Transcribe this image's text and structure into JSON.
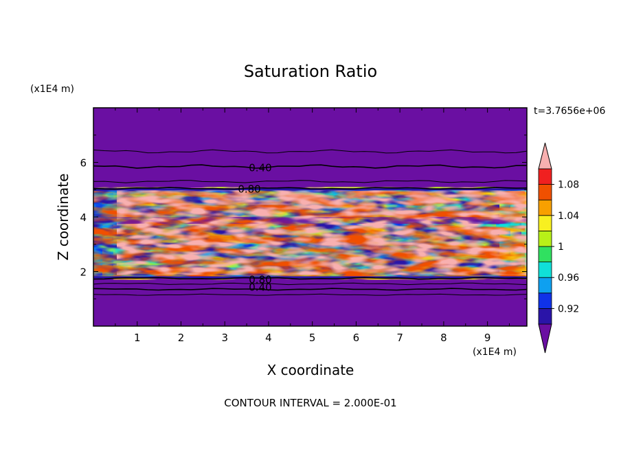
{
  "chart_data": {
    "type": "heatmap",
    "title": "Saturation Ratio",
    "xlabel": "X coordinate",
    "ylabel": "Z coordinate",
    "x_unit": "(x1E4 m)",
    "y_unit": "(x1E4 m)",
    "xlim": [
      0,
      9.9
    ],
    "ylim": [
      0,
      8
    ],
    "x_ticks": [
      "1",
      "2",
      "3",
      "4",
      "5",
      "6",
      "7",
      "8",
      "9"
    ],
    "y_ticks": [
      "2",
      "4",
      "6"
    ],
    "time_label": "t=3.7656e+06",
    "footer": "CONTOUR INTERVAL = 2.000E-01",
    "contour_labels": [
      "0.40",
      "0.80",
      "0.80",
      "0.40"
    ],
    "colorbar": {
      "levels": [
        0.9,
        0.92,
        0.94,
        0.96,
        0.98,
        1.0,
        1.02,
        1.04,
        1.06,
        1.08,
        1.1
      ],
      "tick_labels": [
        "0.92",
        "0.96",
        "1",
        "1.04",
        "1.08"
      ],
      "colors": [
        "#6a0fa2",
        "#2a14a8",
        "#1032e8",
        "#0ea0f0",
        "#10e0d8",
        "#30e060",
        "#b8f018",
        "#f8f020",
        "#f8a000",
        "#f05000",
        "#f02020",
        "#f8b0b0"
      ]
    },
    "layers": {
      "cloud_bottom_z": 1.8,
      "cloud_top_z": 5.0,
      "background_color": "#6a0fa2"
    }
  }
}
